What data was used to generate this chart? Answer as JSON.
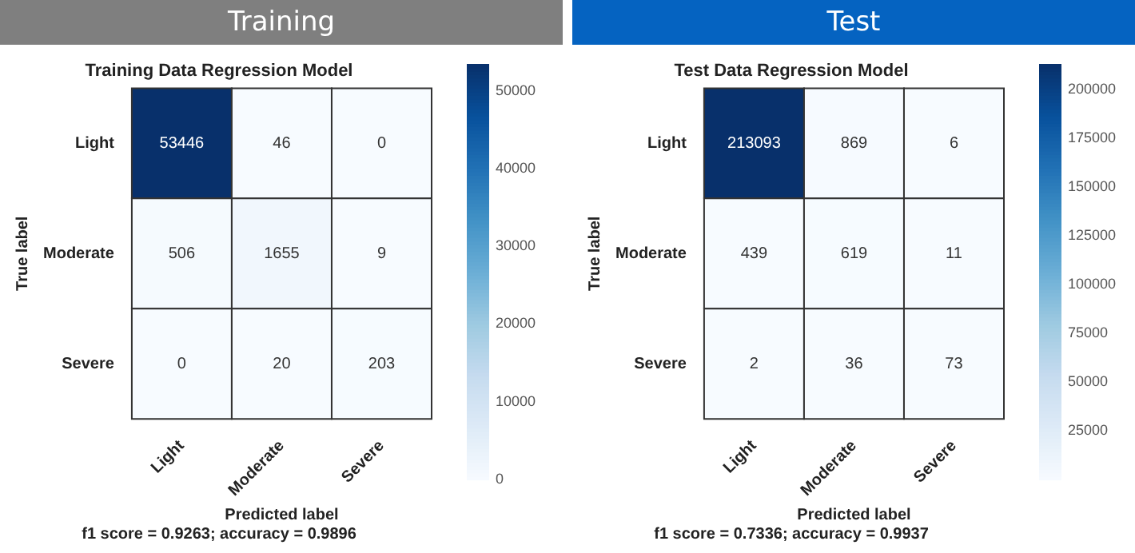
{
  "chart_data": [
    {
      "type": "heatmap",
      "title": "Training",
      "subtitle": "Training Data Regression Model",
      "xlabel": "Predicted label",
      "ylabel": "True label",
      "categories": [
        "Light",
        "Moderate",
        "Severe"
      ],
      "y_categories": [
        "Light",
        "Moderate",
        "Severe"
      ],
      "cells": [
        [
          53446,
          46,
          0
        ],
        [
          506,
          1655,
          9
        ],
        [
          0,
          20,
          203
        ]
      ],
      "clim": [
        0,
        53446
      ],
      "cticks": [
        0,
        10000,
        20000,
        30000,
        40000,
        50000
      ],
      "data_labels": true,
      "annotations": [
        "f1 score = 0.9263; accuracy = 0.9896"
      ]
    },
    {
      "type": "heatmap",
      "title": "Test",
      "subtitle": "Test Data Regression Model",
      "xlabel": "Predicted label",
      "ylabel": "True label",
      "categories": [
        "Light",
        "Moderate",
        "Severe"
      ],
      "y_categories": [
        "Light",
        "Moderate",
        "Severe"
      ],
      "cells": [
        [
          213093,
          869,
          6
        ],
        [
          439,
          619,
          11
        ],
        [
          2,
          36,
          73
        ]
      ],
      "clim": [
        2,
        213093
      ],
      "cticks": [
        25000,
        50000,
        75000,
        100000,
        125000,
        150000,
        175000,
        200000
      ],
      "data_labels": true,
      "annotations": [
        "f1 score = 0.7336; accuracy = 0.9937"
      ]
    }
  ]
}
